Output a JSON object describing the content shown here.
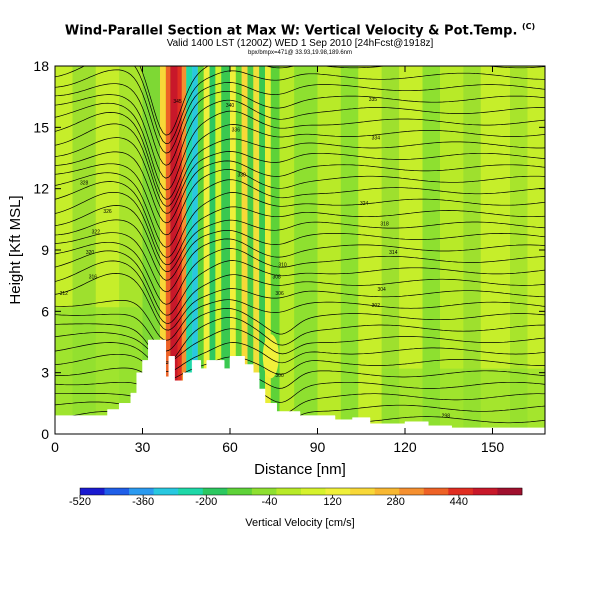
{
  "title": {
    "main": "Wind-Parallel Section at Max W: Vertical Velocity & Pot.Temp.",
    "copyright": "(C)",
    "subtitle": "Valid 1400 LST (1200Z) WED 1 Sep 2010 [24hFcst@1918z]",
    "note": "bpx/bmpx=471@ 33.93,19.98,189.6nm"
  },
  "chart_data": {
    "type": "heatmap",
    "xlabel": "Distance [nm]",
    "ylabel": "Height [Kft MSL]",
    "xlim": [
      0,
      168
    ],
    "ylim": [
      0,
      18
    ],
    "xticks": [
      "0",
      "30",
      "60",
      "90",
      "120",
      "150"
    ],
    "yticks": [
      "0",
      "3",
      "6",
      "9",
      "12",
      "15",
      "18"
    ],
    "colorbar": {
      "title": "Vertical Velocity [cm/s]",
      "range": [
        -520,
        600
      ],
      "tick_labels": [
        "-520",
        "-360",
        "-200",
        "-40",
        "120",
        "280",
        "440"
      ],
      "tick_values": [
        -520,
        -360,
        -200,
        -40,
        120,
        280,
        440
      ],
      "colors": [
        "#1a1ad0",
        "#1f5ee8",
        "#2a9af0",
        "#28c8e0",
        "#1ed8a8",
        "#2cc860",
        "#5ed238",
        "#8ee030",
        "#b8ea28",
        "#d6f22c",
        "#f0f03a",
        "#f8d838",
        "#f8b832",
        "#f59030",
        "#ee6226",
        "#e02e22",
        "#c8182a",
        "#a0102e"
      ]
    },
    "terrain": [
      [
        0,
        0.9
      ],
      [
        18,
        0.9
      ],
      [
        18,
        1.2
      ],
      [
        22,
        1.2
      ],
      [
        22,
        1.5
      ],
      [
        26,
        1.5
      ],
      [
        26,
        2.0
      ],
      [
        28,
        2.0
      ],
      [
        28,
        3.0
      ],
      [
        30,
        3.0
      ],
      [
        30,
        3.6
      ],
      [
        32,
        3.6
      ],
      [
        32,
        4.6
      ],
      [
        38,
        4.6
      ],
      [
        38,
        2.8
      ],
      [
        39,
        2.8
      ],
      [
        39,
        3.8
      ],
      [
        41,
        3.8
      ],
      [
        41,
        2.6
      ],
      [
        44,
        2.6
      ],
      [
        44,
        3.0
      ],
      [
        47,
        3.0
      ],
      [
        47,
        3.6
      ],
      [
        50,
        3.6
      ],
      [
        50,
        3.2
      ],
      [
        52,
        3.2
      ],
      [
        52,
        3.6
      ],
      [
        58,
        3.6
      ],
      [
        58,
        3.2
      ],
      [
        60,
        3.2
      ],
      [
        60,
        3.8
      ],
      [
        65,
        3.8
      ],
      [
        65,
        3.4
      ],
      [
        68,
        3.4
      ],
      [
        68,
        3.0
      ],
      [
        70,
        3.0
      ],
      [
        70,
        2.2
      ],
      [
        72,
        2.2
      ],
      [
        72,
        1.5
      ],
      [
        76,
        1.5
      ],
      [
        76,
        1.1
      ],
      [
        84,
        1.1
      ],
      [
        84,
        0.9
      ],
      [
        96,
        0.9
      ],
      [
        96,
        0.7
      ],
      [
        102,
        0.7
      ],
      [
        102,
        0.8
      ],
      [
        108,
        0.8
      ],
      [
        108,
        0.5
      ],
      [
        120,
        0.5
      ],
      [
        120,
        0.6
      ],
      [
        128,
        0.6
      ],
      [
        128,
        0.4
      ],
      [
        136,
        0.4
      ],
      [
        136,
        0.3
      ],
      [
        168,
        0.3
      ]
    ],
    "contours": [
      {
        "label": "345",
        "x": 42,
        "y": 16.2
      },
      {
        "label": "340",
        "x": 60,
        "y": 16.0
      },
      {
        "label": "336",
        "x": 62,
        "y": 14.8
      },
      {
        "label": "335",
        "x": 109,
        "y": 16.3
      },
      {
        "label": "334",
        "x": 110,
        "y": 14.4
      },
      {
        "label": "330",
        "x": 64,
        "y": 12.6
      },
      {
        "label": "328",
        "x": 10,
        "y": 12.2
      },
      {
        "label": "326",
        "x": 18,
        "y": 10.8
      },
      {
        "label": "324",
        "x": 106,
        "y": 11.2
      },
      {
        "label": "322",
        "x": 14,
        "y": 9.8
      },
      {
        "label": "320",
        "x": 12,
        "y": 8.8
      },
      {
        "label": "318",
        "x": 113,
        "y": 10.2
      },
      {
        "label": "316",
        "x": 13,
        "y": 7.6
      },
      {
        "label": "314",
        "x": 116,
        "y": 8.8
      },
      {
        "label": "312",
        "x": 3,
        "y": 6.8
      },
      {
        "label": "310",
        "x": 78,
        "y": 8.2
      },
      {
        "label": "308",
        "x": 76,
        "y": 7.6
      },
      {
        "label": "306",
        "x": 77,
        "y": 6.8
      },
      {
        "label": "304",
        "x": 112,
        "y": 7.0
      },
      {
        "label": "302",
        "x": 110,
        "y": 6.2
      },
      {
        "label": "300",
        "x": 77,
        "y": 2.8
      },
      {
        "label": "298",
        "x": 134,
        "y": 0.8
      }
    ]
  }
}
